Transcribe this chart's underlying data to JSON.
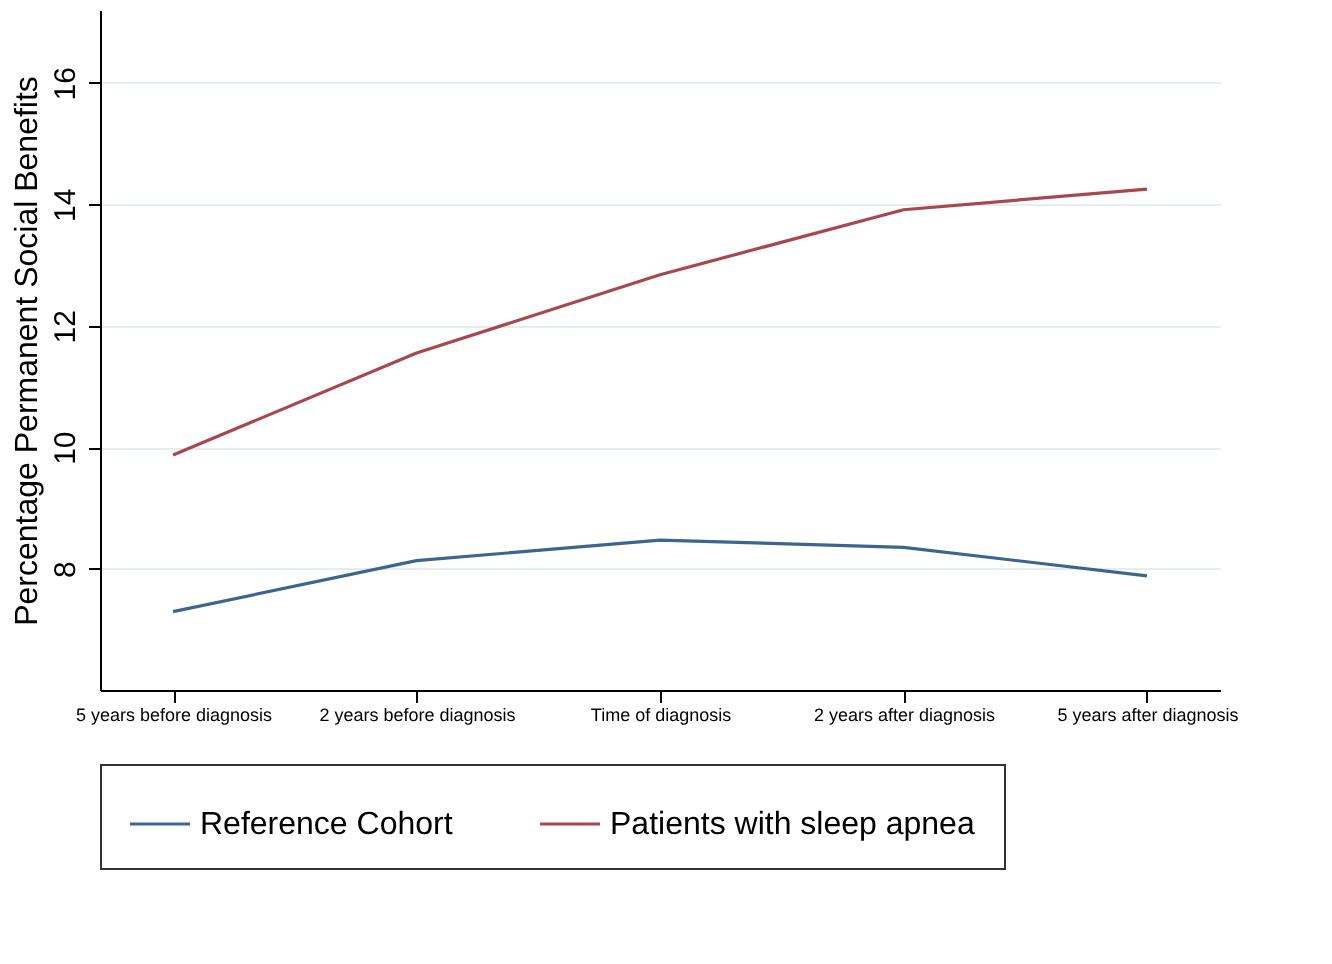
{
  "chart_data": {
    "type": "line",
    "ylabel": "Percentage Permanent Social Benefits",
    "categories": [
      "5 years before diagnosis",
      "2 years before diagnosis",
      "Time of diagnosis",
      "2 years after diagnosis",
      "5 years after diagnosis"
    ],
    "series": [
      {
        "name": "Reference Cohort",
        "color": "#3c6690",
        "values": [
          7.29,
          8.13,
          8.47,
          8.35,
          7.88
        ]
      },
      {
        "name": "Patients with sleep apnea",
        "color": "#a8474f",
        "values": [
          9.87,
          11.55,
          12.84,
          13.91,
          14.25
        ]
      }
    ],
    "ylim": [
      6,
      17.2
    ],
    "yticks": [
      8,
      10,
      12,
      14,
      16
    ],
    "grid": "y",
    "legend": "bottom",
    "marker": "none",
    "line_style": "solid"
  }
}
